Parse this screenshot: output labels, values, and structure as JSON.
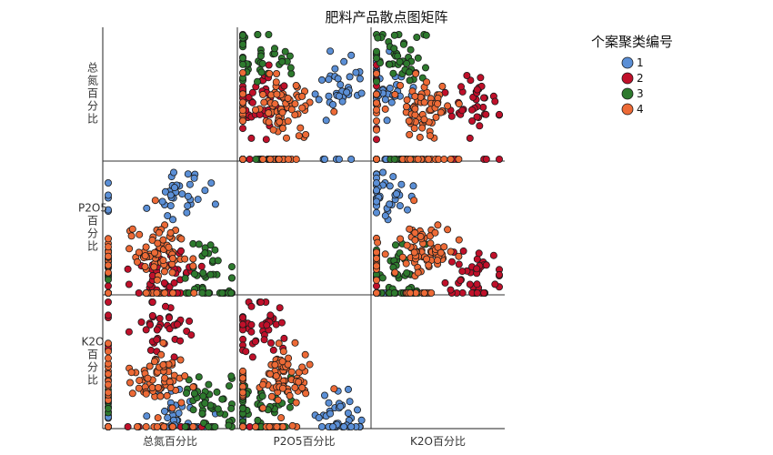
{
  "chart_data": {
    "type": "scatter",
    "title": "肥料产品散点图矩阵",
    "variables": [
      "总氮百分比",
      "P2O5百分比",
      "K2O百分比"
    ],
    "row_labels": [
      "总\n氮\n百\n分\n比",
      "P2O5\n百\n分\n比",
      "K2O\n百\n分\n比"
    ],
    "legend": {
      "title": "个案聚类编号",
      "placement": "top-right",
      "items": [
        {
          "label": "1",
          "color": "#5b8fd6"
        },
        {
          "label": "2",
          "color": "#c0102a"
        },
        {
          "label": "3",
          "color": "#2e7a2e"
        },
        {
          "label": "4",
          "color": "#ed6a36"
        }
      ]
    },
    "diagonal_empty": true,
    "clusters": [
      {
        "name": "1",
        "color": "#5b8fd6",
        "centroid": {
          "总氮百分比": 0.55,
          "P2O5百分比": 0.78,
          "K2O百分比": 0.12
        }
      },
      {
        "name": "2",
        "color": "#c0102a",
        "centroid": {
          "总氮百分比": 0.45,
          "P2O5百分比": 0.18,
          "K2O百分比": 0.82
        }
      },
      {
        "name": "3",
        "color": "#2e7a2e",
        "centroid": {
          "总氮百分比": 0.85,
          "P2O5百分比": 0.15,
          "K2O百分比": 0.2
        }
      },
      {
        "name": "4",
        "color": "#ed6a36",
        "centroid": {
          "总氮百分比": 0.4,
          "P2O5百分比": 0.35,
          "K2O百分比": 0.35
        }
      }
    ]
  }
}
